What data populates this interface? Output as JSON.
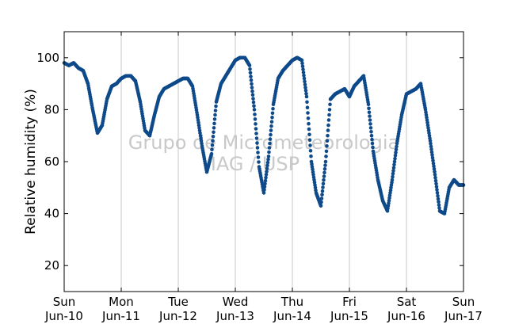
{
  "chart_data": {
    "type": "scatter",
    "xlabel": "",
    "ylabel": "Relative humidity (%)",
    "ylim": [
      10,
      110
    ],
    "xlim": [
      "2011-06-10 00:00",
      "2011-06-17 00:00"
    ],
    "y_ticks": [
      20,
      40,
      60,
      80,
      100
    ],
    "x_ticks": [
      {
        "day": "Sun",
        "date": "Jun-10"
      },
      {
        "day": "Mon",
        "date": "Jun-11"
      },
      {
        "day": "Tue",
        "date": "Jun-12"
      },
      {
        "day": "Wed",
        "date": "Jun-13"
      },
      {
        "day": "Thu",
        "date": "Jun-14"
      },
      {
        "day": "Fri",
        "date": "Jun-15"
      },
      {
        "day": "Sat",
        "date": "Jun-16"
      },
      {
        "day": "Sun",
        "date": "Jun-17"
      }
    ],
    "grid": "vertical",
    "marker_color": "#0e4a8a",
    "watermark": [
      "Grupo de Micrometeorologia",
      "IAG / USP"
    ],
    "series": [
      {
        "x": [
          "2011-06-10 00:00",
          "2011-06-10 02:00",
          "2011-06-10 04:00",
          "2011-06-10 06:00",
          "2011-06-10 08:00",
          "2011-06-10 10:00",
          "2011-06-10 12:00",
          "2011-06-10 14:00",
          "2011-06-10 16:00",
          "2011-06-10 18:00",
          "2011-06-10 20:00",
          "2011-06-10 22:00",
          "2011-06-11 00:00",
          "2011-06-11 02:00",
          "2011-06-11 04:00",
          "2011-06-11 06:00",
          "2011-06-11 08:00",
          "2011-06-11 10:00",
          "2011-06-11 12:00",
          "2011-06-11 14:00",
          "2011-06-11 16:00",
          "2011-06-11 18:00",
          "2011-06-11 20:00",
          "2011-06-11 22:00",
          "2011-06-12 00:00",
          "2011-06-12 02:00",
          "2011-06-12 04:00",
          "2011-06-12 06:00",
          "2011-06-12 08:00",
          "2011-06-12 10:00",
          "2011-06-12 12:00",
          "2011-06-12 14:00",
          "2011-06-12 16:00",
          "2011-06-12 18:00",
          "2011-06-12 20:00",
          "2011-06-12 22:00",
          "2011-06-13 00:00",
          "2011-06-13 02:00",
          "2011-06-13 04:00",
          "2011-06-13 06:00",
          "2011-06-13 08:00",
          "2011-06-13 10:00",
          "2011-06-13 12:00",
          "2011-06-13 14:00",
          "2011-06-13 16:00",
          "2011-06-13 18:00",
          "2011-06-13 20:00",
          "2011-06-13 22:00",
          "2011-06-14 00:00",
          "2011-06-14 02:00",
          "2011-06-14 04:00",
          "2011-06-14 06:00",
          "2011-06-14 08:00",
          "2011-06-14 10:00",
          "2011-06-14 12:00",
          "2011-06-14 14:00",
          "2011-06-14 16:00",
          "2011-06-14 18:00",
          "2011-06-14 20:00",
          "2011-06-14 22:00",
          "2011-06-15 00:00",
          "2011-06-15 02:00",
          "2011-06-15 04:00",
          "2011-06-15 06:00",
          "2011-06-15 08:00",
          "2011-06-15 10:00",
          "2011-06-15 12:00",
          "2011-06-15 14:00",
          "2011-06-15 16:00",
          "2011-06-15 18:00",
          "2011-06-15 20:00",
          "2011-06-15 22:00",
          "2011-06-16 00:00",
          "2011-06-16 02:00",
          "2011-06-16 04:00",
          "2011-06-16 06:00",
          "2011-06-16 08:00",
          "2011-06-16 10:00",
          "2011-06-16 12:00",
          "2011-06-16 14:00",
          "2011-06-16 16:00",
          "2011-06-16 18:00",
          "2011-06-16 20:00",
          "2011-06-16 22:00",
          "2011-06-17 00:00"
        ],
        "y": [
          98,
          97,
          98,
          96,
          95,
          90,
          80,
          71,
          74,
          84,
          89,
          90,
          92,
          93,
          93,
          91,
          83,
          72,
          70,
          78,
          85,
          88,
          89,
          90,
          91,
          92,
          92,
          89,
          78,
          66,
          56,
          63,
          83,
          90,
          93,
          96,
          99,
          100,
          100,
          97,
          80,
          58,
          48,
          62,
          82,
          92,
          95,
          97,
          99,
          100,
          99,
          85,
          60,
          48,
          43,
          60,
          84,
          86,
          87,
          88,
          85,
          89,
          91,
          93,
          82,
          64,
          53,
          45,
          41,
          53,
          67,
          78,
          86,
          87,
          88,
          90,
          80,
          68,
          55,
          41,
          40,
          50,
          53,
          51,
          51
        ]
      }
    ]
  }
}
